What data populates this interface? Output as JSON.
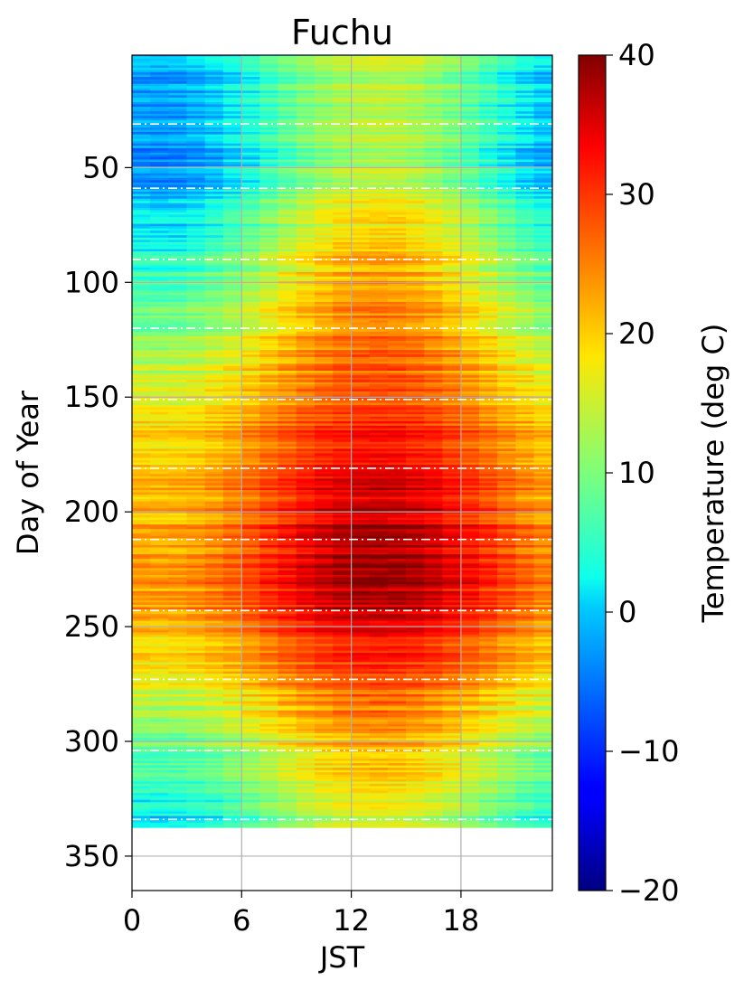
{
  "chart_data": {
    "type": "heatmap",
    "title": "Fuchu",
    "xlabel": "JST",
    "ylabel": "Day of Year",
    "xlim": [
      0,
      23
    ],
    "ylim": [
      365,
      1
    ],
    "x_ticks": [
      0,
      6,
      12,
      18
    ],
    "y_ticks": [
      50,
      100,
      150,
      200,
      250,
      300,
      350
    ],
    "grid": true,
    "data_last_day": 337,
    "month_boundary_days": [
      31,
      59,
      90,
      120,
      151,
      181,
      212,
      243,
      273,
      304,
      334
    ],
    "colormap": "jet",
    "colorbar": {
      "label": "Temperature (deg C)",
      "min": -20,
      "max": 40,
      "ticks": [
        -20,
        -10,
        0,
        10,
        20,
        30,
        40
      ],
      "tick_labels": [
        "−20",
        "−10",
        "0",
        "10",
        "20",
        "30",
        "40"
      ]
    },
    "daily_mean_temperature_by_day": {
      "day": [
        1,
        15,
        32,
        46,
        60,
        75,
        91,
        105,
        121,
        135,
        152,
        166,
        182,
        196,
        213,
        227,
        244,
        258,
        274,
        288,
        305,
        319,
        335
      ],
      "value": [
        5.5,
        5.0,
        5.5,
        4.0,
        7.0,
        9.5,
        13.5,
        16.0,
        18.5,
        20.0,
        22.5,
        26.0,
        27.0,
        28.5,
        30.5,
        31.0,
        30.0,
        26.0,
        23.0,
        18.5,
        15.0,
        11.5,
        8.0
      ]
    },
    "diurnal_range_by_day": {
      "day": [
        1,
        32,
        60,
        91,
        121,
        152,
        182,
        213,
        244,
        274,
        305,
        335
      ],
      "value": [
        8,
        8,
        9,
        9,
        8,
        6,
        7,
        8,
        7,
        6,
        7,
        7
      ]
    },
    "peak_hour": 13.5
  }
}
